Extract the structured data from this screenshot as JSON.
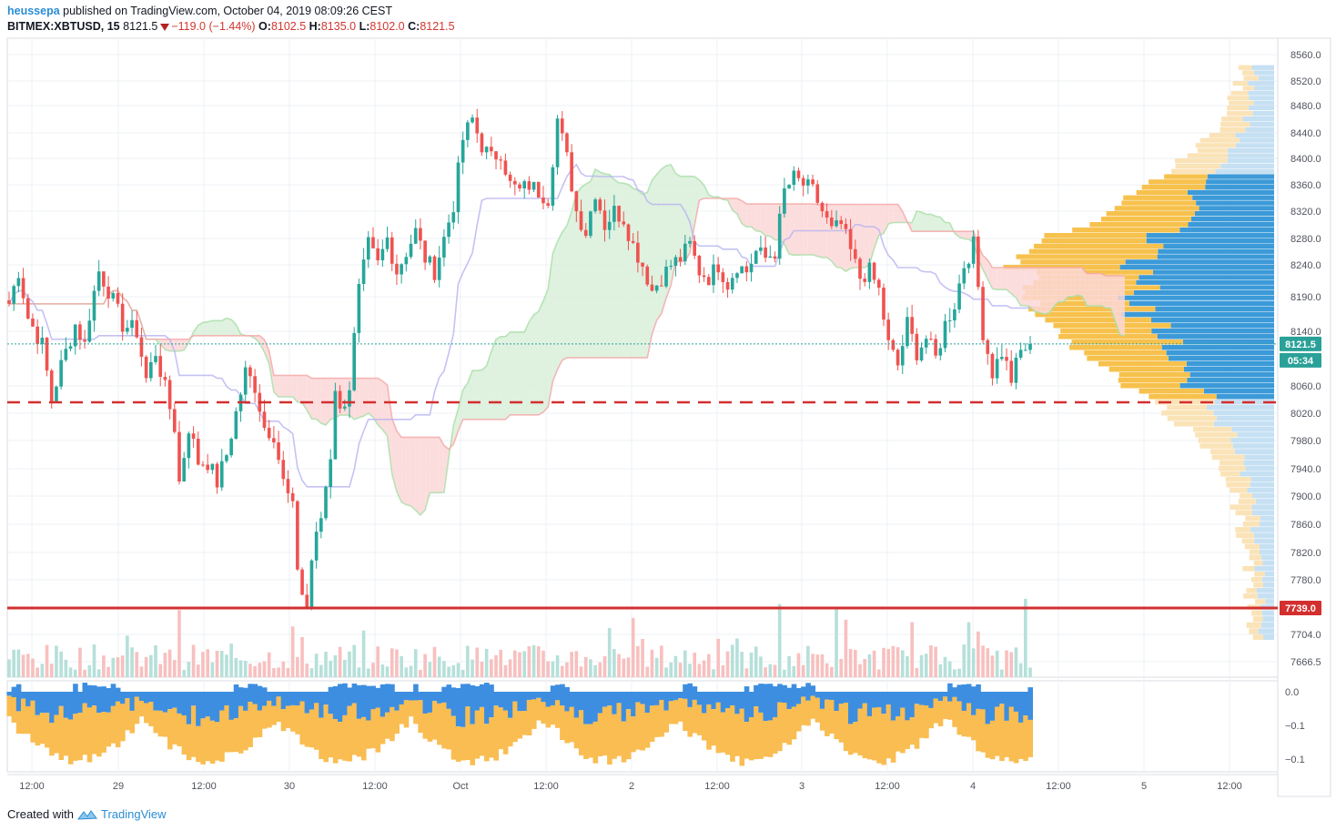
{
  "header": {
    "author": "heussepa",
    "published_text": "published on TradingView.com, October 04, 2019 08:09:26 CEST",
    "symbol": "BITMEX:XBTUSD, 15",
    "last": "8121.5",
    "change": "−119.0 (−1.44%)",
    "o_label": "O:",
    "o": "8102.5",
    "h_label": "H:",
    "h": "8135.0",
    "l_label": "L:",
    "l": "8102.0",
    "c_label": "C:",
    "c": "8121.5"
  },
  "footer": {
    "created_with": "Created with",
    "brand": "TradingView"
  },
  "colors": {
    "up": "#26a69a",
    "down": "#ef5350",
    "resistance": "#d32f2f",
    "vp_up": "#f7c14d",
    "vp_down": "#3c9ad8",
    "vp_up_light": "#fbe3b8",
    "vp_down_light": "#c6e0f3",
    "price_badge": "#2aa198",
    "kumo_bull": "#d9eed9",
    "kumo_bear": "#fbd7d7",
    "baseline": "#b7b3f0",
    "osc_pos": "#3d8ee0",
    "osc_neg": "#f9bd52"
  },
  "chart_data": {
    "type": "candlestick",
    "instrument": "BITMEX:XBTUSD",
    "timeframe": "15",
    "price_axis_labels": [
      "8560.0",
      "8520.0",
      "8480.0",
      "8440.0",
      "8400.0",
      "8360.0",
      "8320.0",
      "8280.0",
      "8240.0",
      "8190.0",
      "8140.0",
      "8060.0",
      "8020.0",
      "7980.0",
      "7940.0",
      "7900.0",
      "7860.0",
      "7820.0",
      "7780.0",
      "7704.0",
      "7666.5"
    ],
    "price_axis_values": [
      8560,
      8520,
      8480,
      8440,
      8400,
      8360,
      8320,
      8280,
      8240,
      8190,
      8140,
      8060,
      8020,
      7980,
      7940,
      7900,
      7860,
      7820,
      7780,
      7704,
      7666.5
    ],
    "ylim": [
      7655,
      8575
    ],
    "time_axis_labels": [
      "12:00",
      "29",
      "12:00",
      "30",
      "12:00",
      "Oct",
      "12:00",
      "2",
      "12:00",
      "3",
      "12:00",
      "4",
      "12:00",
      "5",
      "12:00"
    ],
    "current_price": 8121.5,
    "current_price_label": "8121.5",
    "countdown_label": "05:34",
    "horizontal_support": 7739.0,
    "horizontal_support_label": "7739.0",
    "dashed_level": 8036,
    "close_path": [
      [
        0,
        8180
      ],
      [
        2,
        8230
      ],
      [
        4,
        8160
      ],
      [
        7,
        8120
      ],
      [
        9,
        8040
      ],
      [
        11,
        8090
      ],
      [
        14,
        8150
      ],
      [
        16,
        8120
      ],
      [
        17,
        8165
      ],
      [
        19,
        8230
      ],
      [
        21,
        8200
      ],
      [
        24,
        8150
      ],
      [
        27,
        8140
      ],
      [
        29,
        8070
      ],
      [
        31,
        8110
      ],
      [
        33,
        8055
      ],
      [
        35,
        8000
      ],
      [
        36,
        7920
      ],
      [
        38,
        8000
      ],
      [
        40,
        7950
      ],
      [
        42,
        7950
      ],
      [
        44,
        7920
      ],
      [
        46,
        7960
      ],
      [
        48,
        8020
      ],
      [
        50,
        8080
      ],
      [
        52,
        8060
      ],
      [
        54,
        8000
      ],
      [
        56,
        7990
      ],
      [
        58,
        7920
      ],
      [
        60,
        7880
      ],
      [
        61,
        7800
      ],
      [
        62,
        7760
      ],
      [
        63,
        7740
      ],
      [
        64,
        7810
      ],
      [
        66,
        7870
      ],
      [
        68,
        7960
      ],
      [
        69,
        8060
      ],
      [
        70,
        8020
      ],
      [
        72,
        8060
      ],
      [
        74,
        8200
      ],
      [
        76,
        8270
      ],
      [
        78,
        8240
      ],
      [
        80,
        8280
      ],
      [
        82,
        8230
      ],
      [
        84,
        8260
      ],
      [
        86,
        8290
      ],
      [
        88,
        8250
      ],
      [
        90,
        8230
      ],
      [
        92,
        8280
      ],
      [
        94,
        8330
      ],
      [
        96,
        8430
      ],
      [
        98,
        8460
      ],
      [
        100,
        8420
      ],
      [
        102,
        8400
      ],
      [
        104,
        8410
      ],
      [
        106,
        8360
      ],
      [
        108,
        8350
      ],
      [
        110,
        8360
      ],
      [
        112,
        8350
      ],
      [
        114,
        8340
      ],
      [
        116,
        8460
      ],
      [
        118,
        8400
      ],
      [
        120,
        8320
      ],
      [
        122,
        8290
      ],
      [
        124,
        8350
      ],
      [
        126,
        8300
      ],
      [
        128,
        8320
      ],
      [
        130,
        8310
      ],
      [
        132,
        8270
      ],
      [
        134,
        8240
      ],
      [
        136,
        8200
      ],
      [
        138,
        8220
      ],
      [
        140,
        8240
      ],
      [
        142,
        8250
      ],
      [
        144,
        8270
      ],
      [
        146,
        8230
      ],
      [
        148,
        8220
      ],
      [
        150,
        8240
      ],
      [
        152,
        8210
      ],
      [
        154,
        8240
      ],
      [
        156,
        8230
      ],
      [
        158,
        8260
      ],
      [
        160,
        8250
      ],
      [
        162,
        8260
      ],
      [
        164,
        8350
      ],
      [
        166,
        8370
      ],
      [
        168,
        8360
      ],
      [
        170,
        8350
      ],
      [
        172,
        8320
      ],
      [
        174,
        8290
      ],
      [
        176,
        8300
      ],
      [
        178,
        8260
      ],
      [
        180,
        8220
      ],
      [
        182,
        8230
      ],
      [
        184,
        8200
      ],
      [
        186,
        8120
      ],
      [
        188,
        8090
      ],
      [
        190,
        8150
      ],
      [
        192,
        8110
      ],
      [
        194,
        8130
      ],
      [
        196,
        8100
      ],
      [
        198,
        8150
      ],
      [
        200,
        8180
      ],
      [
        202,
        8240
      ],
      [
        204,
        8270
      ],
      [
        206,
        8140
      ],
      [
        208,
        8080
      ],
      [
        210,
        8110
      ],
      [
        212,
        8070
      ],
      [
        214,
        8110
      ],
      [
        216,
        8121.5
      ]
    ],
    "volume_profile_note": "visible-range volume profile on right side, up/down volume split"
  }
}
